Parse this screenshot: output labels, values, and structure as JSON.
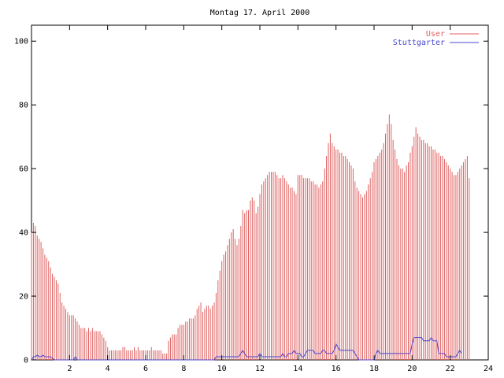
{
  "chart_data": {
    "type": "bar",
    "title": "Montag 17. April 2000",
    "xlim": [
      0,
      24
    ],
    "ylim": [
      0,
      105
    ],
    "xticks": [
      2,
      4,
      6,
      8,
      10,
      12,
      14,
      16,
      18,
      20,
      22,
      24
    ],
    "yticks": [
      0,
      20,
      40,
      60,
      80,
      100
    ],
    "legend_position": "top-right",
    "interval_hours": 0.1,
    "series": [
      {
        "name": "User",
        "style": "impulses",
        "color": "#e06060",
        "values": [
          40,
          43,
          42,
          39,
          38,
          37,
          35,
          33,
          32,
          31,
          29,
          27,
          26,
          25,
          24,
          21,
          18,
          17,
          16,
          15,
          14,
          14,
          14,
          13,
          12,
          11,
          10,
          10,
          10,
          9,
          10,
          9,
          10,
          9,
          9,
          9,
          9,
          8,
          7,
          6,
          4,
          3,
          3,
          3,
          3,
          3,
          3,
          3,
          4,
          4,
          3,
          3,
          3,
          3,
          4,
          3,
          4,
          3,
          3,
          3,
          3,
          3,
          3,
          4,
          3,
          3,
          3,
          3,
          3,
          2,
          2,
          2,
          6,
          7,
          8,
          8,
          8,
          10,
          11,
          11,
          11,
          12,
          12,
          13,
          13,
          13,
          14,
          16,
          17,
          18,
          15,
          16,
          17,
          17,
          16,
          17,
          18,
          21,
          25,
          28,
          31,
          33,
          34,
          36,
          38,
          40,
          41,
          38,
          36,
          38,
          42,
          47,
          46,
          47,
          47,
          50,
          51,
          50,
          46,
          48,
          52,
          55,
          56,
          57,
          58,
          59,
          59,
          59,
          59,
          58,
          57,
          57,
          58,
          57,
          56,
          55,
          54,
          54,
          53,
          52,
          58,
          58,
          58,
          57,
          57,
          57,
          57,
          56,
          56,
          55,
          55,
          54,
          55,
          56,
          60,
          64,
          68,
          71,
          68,
          67,
          66,
          66,
          65,
          65,
          64,
          64,
          63,
          62,
          61,
          60,
          56,
          54,
          53,
          52,
          51,
          52,
          53,
          55,
          57,
          59,
          62,
          63,
          64,
          65,
          66,
          68,
          71,
          74,
          77,
          74,
          69,
          66,
          63,
          61,
          60,
          60,
          59,
          61,
          62,
          65,
          67,
          70,
          73,
          71,
          70,
          69,
          69,
          68,
          68,
          67,
          67,
          66,
          66,
          65,
          65,
          64,
          64,
          63,
          62,
          61,
          60,
          59,
          58,
          58,
          59,
          60,
          61,
          62,
          63,
          64,
          57
        ],
        "values_note": ""
      },
      {
        "name": "Stuttgarter",
        "style": "lines",
        "color": "#4848d0",
        "values": [
          0,
          1,
          1,
          1.5,
          1,
          1,
          1.5,
          1,
          1,
          1,
          1,
          0.5,
          0,
          0,
          0,
          0,
          0,
          0,
          0,
          0,
          0,
          0,
          0,
          1,
          0,
          0,
          0,
          0,
          0,
          0,
          0,
          0,
          0,
          0,
          0,
          0,
          0,
          0,
          0,
          0,
          0,
          0,
          0,
          0,
          0,
          0,
          0,
          0,
          0,
          0,
          0,
          0,
          0,
          0,
          0,
          0,
          0,
          0,
          0,
          0,
          0,
          0,
          0,
          0,
          0,
          0,
          0,
          0,
          0,
          0,
          0,
          0,
          0,
          0,
          0,
          0,
          0,
          0,
          0,
          0,
          0,
          0,
          0,
          0,
          0,
          0,
          0,
          0,
          0,
          0,
          0,
          0,
          0,
          0,
          0,
          0,
          0,
          1,
          1,
          1,
          1,
          1,
          1,
          1,
          1,
          1,
          1,
          1,
          1,
          1,
          2,
          3,
          2,
          1,
          1,
          1,
          1,
          1,
          1,
          1,
          2,
          1,
          1,
          1,
          1,
          1,
          1,
          1,
          1,
          1,
          1,
          1,
          2,
          1,
          1,
          2,
          2,
          2,
          3,
          2,
          2,
          2,
          1,
          1,
          2,
          3,
          3,
          3,
          3,
          2,
          2,
          2,
          2,
          3,
          3,
          2,
          2,
          2,
          2,
          3,
          5,
          4,
          3,
          3,
          3,
          3,
          3,
          3,
          3,
          3,
          2,
          1,
          0,
          0,
          0,
          0,
          0,
          0,
          0,
          0,
          0,
          2,
          3,
          2,
          2,
          2,
          2,
          2,
          2,
          2,
          2,
          2,
          2,
          2,
          2,
          2,
          2,
          2,
          2,
          2,
          5,
          7,
          7,
          7,
          7,
          7,
          6,
          6,
          6,
          6,
          7,
          6,
          6,
          6,
          2,
          2,
          2,
          2,
          1,
          1,
          1,
          1,
          1,
          1,
          2,
          3,
          2
        ]
      }
    ]
  },
  "colors": {
    "axis": "#000000",
    "title": "#000000",
    "user": "#e06060",
    "stuttgarter": "#4848d0"
  }
}
